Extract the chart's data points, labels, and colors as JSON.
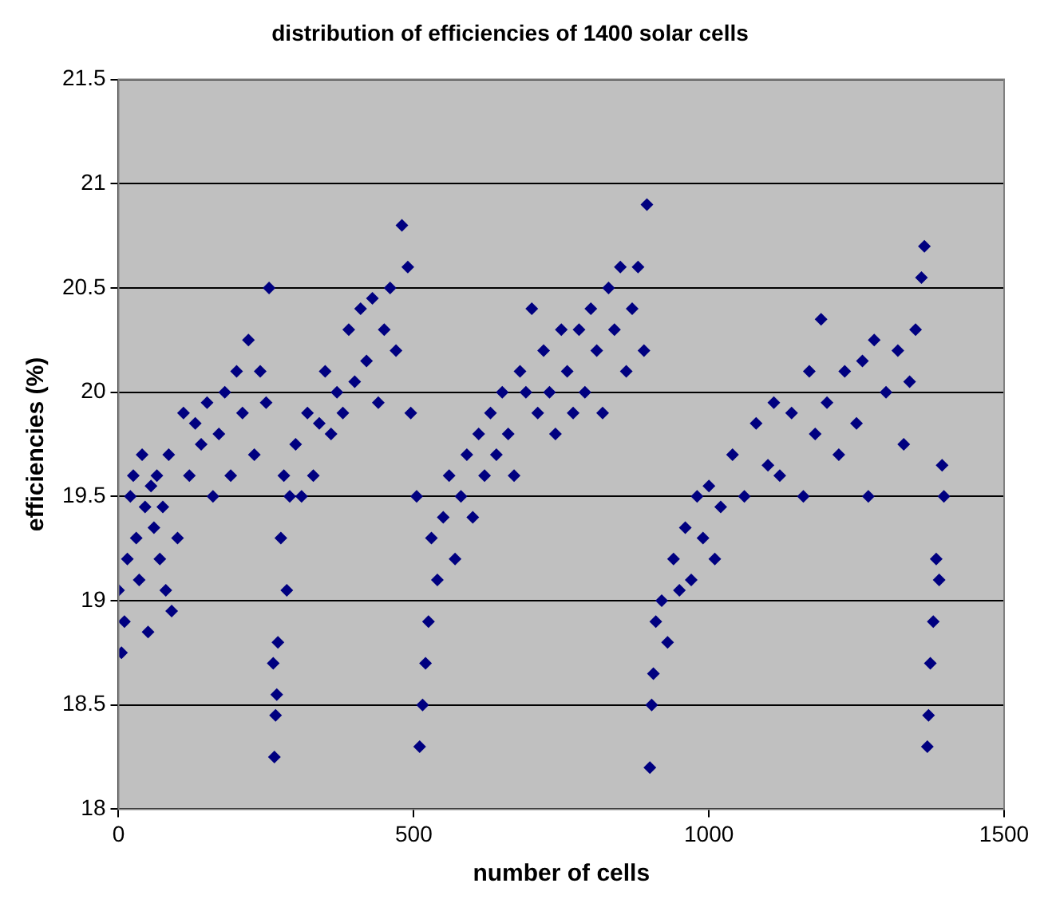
{
  "chart_data": {
    "type": "scatter",
    "title": "distribution of efficiencies of 1400 solar cells",
    "xlabel": "number of cells",
    "ylabel": "efficiencies (%)",
    "xlim": [
      0,
      1500
    ],
    "xticks": [
      0,
      500,
      1000,
      1500
    ],
    "ylim": [
      18,
      21.5
    ],
    "yticks": [
      18,
      18.5,
      19,
      19.5,
      20,
      20.5,
      21,
      21.5
    ],
    "grid": "y",
    "marker": "diamond",
    "legend": false,
    "series": [
      {
        "color": "#000080",
        "x": [
          0,
          5,
          10,
          15,
          20,
          25,
          30,
          35,
          40,
          45,
          50,
          55,
          60,
          65,
          70,
          75,
          80,
          85,
          90,
          100,
          110,
          120,
          130,
          140,
          150,
          160,
          170,
          180,
          190,
          200,
          210,
          220,
          230,
          240,
          250,
          255,
          262,
          264,
          266,
          268,
          270,
          275,
          280,
          285,
          290,
          300,
          310,
          320,
          330,
          340,
          350,
          360,
          370,
          380,
          390,
          400,
          410,
          420,
          430,
          440,
          450,
          460,
          470,
          480,
          490,
          495,
          505,
          510,
          515,
          520,
          525,
          530,
          540,
          550,
          560,
          570,
          580,
          590,
          600,
          610,
          620,
          630,
          640,
          650,
          660,
          670,
          680,
          690,
          700,
          710,
          720,
          730,
          740,
          750,
          760,
          770,
          780,
          790,
          800,
          810,
          820,
          830,
          840,
          850,
          860,
          870,
          880,
          890,
          895,
          900,
          903,
          906,
          910,
          920,
          930,
          940,
          950,
          960,
          970,
          980,
          990,
          1000,
          1010,
          1020,
          1040,
          1060,
          1080,
          1100,
          1110,
          1120,
          1140,
          1160,
          1170,
          1180,
          1190,
          1200,
          1220,
          1230,
          1250,
          1260,
          1270,
          1280,
          1300,
          1320,
          1330,
          1340,
          1350,
          1360,
          1365,
          1370,
          1372,
          1375,
          1380,
          1385,
          1390,
          1395,
          1398
        ],
        "values": [
          19.05,
          18.75,
          18.9,
          19.2,
          19.5,
          19.6,
          19.3,
          19.1,
          19.7,
          19.45,
          18.85,
          19.55,
          19.35,
          19.6,
          19.2,
          19.45,
          19.05,
          19.7,
          18.95,
          19.3,
          19.9,
          19.6,
          19.85,
          19.75,
          19.95,
          19.5,
          19.8,
          20.0,
          19.6,
          20.1,
          19.9,
          20.25,
          19.7,
          20.1,
          19.95,
          20.5,
          18.7,
          18.25,
          18.45,
          18.55,
          18.8,
          19.3,
          19.6,
          19.05,
          19.5,
          19.75,
          19.5,
          19.9,
          19.6,
          19.85,
          20.1,
          19.8,
          20.0,
          19.9,
          20.3,
          20.05,
          20.4,
          20.15,
          20.45,
          19.95,
          20.3,
          20.5,
          20.2,
          20.8,
          20.6,
          19.9,
          19.5,
          18.3,
          18.5,
          18.7,
          18.9,
          19.3,
          19.1,
          19.4,
          19.6,
          19.2,
          19.5,
          19.7,
          19.4,
          19.8,
          19.6,
          19.9,
          19.7,
          20.0,
          19.8,
          19.6,
          20.1,
          20.0,
          20.4,
          19.9,
          20.2,
          20.0,
          19.8,
          20.3,
          20.1,
          19.9,
          20.3,
          20.0,
          20.4,
          20.2,
          19.9,
          20.5,
          20.3,
          20.6,
          20.1,
          20.4,
          20.6,
          20.2,
          20.9,
          18.2,
          18.5,
          18.65,
          18.9,
          19.0,
          18.8,
          19.2,
          19.05,
          19.35,
          19.1,
          19.5,
          19.3,
          19.55,
          19.2,
          19.45,
          19.7,
          19.5,
          19.85,
          19.65,
          19.95,
          19.6,
          19.9,
          19.5,
          20.1,
          19.8,
          20.35,
          19.95,
          19.7,
          20.1,
          19.85,
          20.15,
          19.5,
          20.25,
          20.0,
          20.2,
          19.75,
          20.05,
          20.3,
          20.55,
          20.7,
          18.3,
          18.45,
          18.7,
          18.9,
          19.2,
          19.1,
          19.65,
          19.5
        ]
      }
    ]
  }
}
